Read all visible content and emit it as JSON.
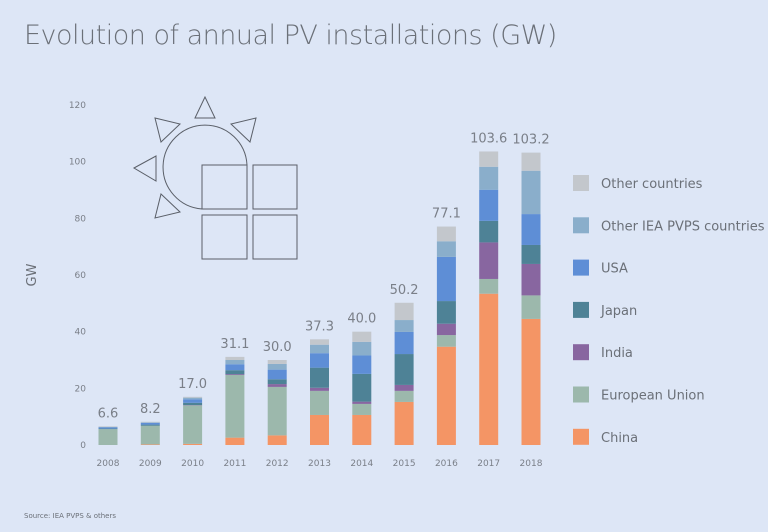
{
  "chart_data": {
    "type": "bar",
    "stacked": true,
    "title": "Evolution of annual PV installations (GW)",
    "ylabel": "GW",
    "xlabel": "",
    "ylim": [
      0,
      120
    ],
    "yticks": [
      0,
      20,
      40,
      60,
      80,
      100,
      120
    ],
    "grid": false,
    "legend_position": "right",
    "source": "Source: IEA PVPS & others",
    "categories": [
      "2008",
      "2009",
      "2010",
      "2011",
      "2012",
      "2013",
      "2014",
      "2015",
      "2016",
      "2017",
      "2018"
    ],
    "totals": [
      "6.6",
      "8.2",
      "17.0",
      "31.1",
      "30.0",
      "37.3",
      "40.0",
      "50.2",
      "77.1",
      "103.6",
      "103.2"
    ],
    "series": [
      {
        "name": "China",
        "color": "#f49565",
        "values": [
          0,
          0.2,
          0.4,
          2.6,
          3.4,
          10.6,
          10.6,
          15.2,
          34.7,
          53.4,
          44.5
        ]
      },
      {
        "name": "European Union",
        "color": "#9cb8ac",
        "values": [
          5.6,
          6.6,
          13.6,
          22.1,
          17.1,
          8.5,
          3.9,
          3.9,
          4.1,
          5.2,
          8.3
        ]
      },
      {
        "name": "India",
        "color": "#8866a0",
        "values": [
          0,
          0,
          0.1,
          0.3,
          1.0,
          1.1,
          0.8,
          2.1,
          4.0,
          12.9,
          11.1
        ]
      },
      {
        "name": "Japan",
        "color": "#4e8296",
        "values": [
          0.2,
          0.4,
          0.8,
          1.4,
          1.7,
          7.1,
          9.8,
          10.9,
          8.0,
          7.6,
          6.7
        ]
      },
      {
        "name": "USA",
        "color": "#5e8ed6",
        "values": [
          0.4,
          0.6,
          1.2,
          2.1,
          3.4,
          5.1,
          6.5,
          7.8,
          15.6,
          11.0,
          10.9
        ]
      },
      {
        "name": "Other IEA PVPS countries",
        "color": "#8aaecb",
        "values": [
          0.2,
          0.2,
          0.6,
          1.5,
          2.0,
          3.0,
          4.8,
          4.2,
          5.5,
          8.1,
          15.3
        ]
      },
      {
        "name": "Other countries",
        "color": "#c3c7cc",
        "values": [
          0.2,
          0.2,
          0.3,
          1.1,
          1.4,
          1.9,
          3.6,
          6.1,
          5.2,
          5.4,
          6.4
        ]
      }
    ]
  }
}
